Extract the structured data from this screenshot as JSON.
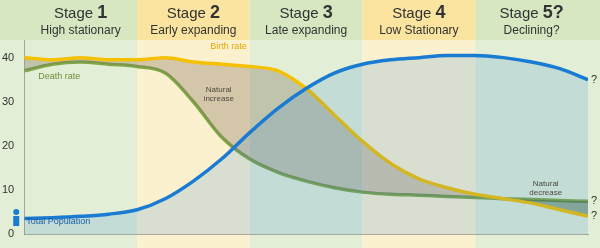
{
  "chart_data": {
    "type": "line",
    "stages": [
      {
        "title": "Stage 1",
        "subtitle": "High stationary",
        "xlim": [
          0,
          20
        ]
      },
      {
        "title": "Stage 2",
        "subtitle": "Early expanding",
        "xlim": [
          20,
          40
        ]
      },
      {
        "title": "Stage 3",
        "subtitle": "Late expanding",
        "xlim": [
          40,
          60
        ]
      },
      {
        "title": "Stage 4",
        "subtitle": "Low Stationary",
        "xlim": [
          60,
          80
        ]
      },
      {
        "title": "Stage 5?",
        "subtitle": "Declining?",
        "xlim": [
          80,
          100
        ]
      }
    ],
    "x": [
      0,
      5,
      10,
      15,
      20,
      25,
      30,
      35,
      40,
      45,
      50,
      55,
      60,
      65,
      70,
      75,
      80,
      85,
      90,
      95,
      100
    ],
    "series": [
      {
        "name": "Birth rate",
        "color": "#f5c000",
        "end_label": "?",
        "values": [
          40,
          39.5,
          40,
          39.5,
          39.5,
          40,
          39,
          38.5,
          38,
          37,
          33,
          27,
          21,
          16,
          12.5,
          10.5,
          9,
          8,
          7,
          5.5,
          4
        ]
      },
      {
        "name": "Death rate",
        "color": "#82a84a",
        "end_label": "?",
        "values": [
          37,
          38.5,
          39,
          38.5,
          38,
          36.5,
          30,
          22,
          17,
          14,
          12,
          10.5,
          9.5,
          9,
          8.8,
          8.5,
          8.3,
          8,
          7.8,
          7.6,
          7.4
        ]
      },
      {
        "name": "Total Population",
        "color": "#1a7bd3",
        "end_label": "?",
        "values": [
          3.5,
          3.7,
          4,
          4.5,
          5.5,
          8,
          12,
          17,
          23,
          28.5,
          33,
          36.5,
          38.5,
          39.5,
          40,
          40.5,
          40.5,
          40,
          39,
          37.5,
          35
        ]
      }
    ],
    "annotations": [
      "Natural increase",
      "Natural decrease"
    ],
    "xlim": [
      0,
      100
    ],
    "ylim": [
      0,
      44
    ],
    "yticks": [
      0,
      10,
      20,
      30,
      40
    ],
    "grid": false,
    "tick_labels": "y"
  }
}
